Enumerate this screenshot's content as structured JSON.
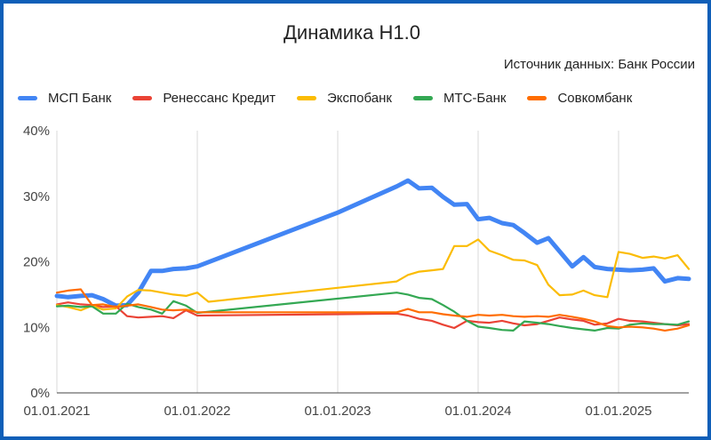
{
  "chart_data": {
    "type": "line",
    "title": "Динамика Н1.0",
    "subtitle": "Источник данных: Банк России",
    "y_ticks": [
      "0%",
      "10%",
      "20%",
      "30%",
      "40%"
    ],
    "ylim": [
      0,
      40
    ],
    "x_ticks": [
      "01.01.2021",
      "01.01.2022",
      "01.01.2023",
      "01.01.2024",
      "01.01.2025"
    ],
    "x_tick_values": [
      2021.0,
      2022.0,
      2023.0,
      2024.0,
      2025.0
    ],
    "xlim": [
      2021.0,
      2025.5
    ],
    "grid": "vertical",
    "legend_position": "top",
    "series": [
      {
        "name": "МСП Банк",
        "color": "#4285f4",
        "x": [
          2021.0,
          2021.08,
          2021.17,
          2021.25,
          2021.33,
          2021.42,
          2021.5,
          2021.58,
          2021.67,
          2021.75,
          2021.83,
          2021.92,
          2022.0,
          2023.0,
          2023.42,
          2023.5,
          2023.58,
          2023.67,
          2023.75,
          2023.83,
          2023.92,
          2024.0,
          2024.08,
          2024.17,
          2024.25,
          2024.33,
          2024.42,
          2024.5,
          2024.58,
          2024.67,
          2024.75,
          2024.83,
          2024.92,
          2025.0,
          2025.08,
          2025.17,
          2025.25,
          2025.33,
          2025.42,
          2025.5
        ],
        "values": [
          14.8,
          14.6,
          14.8,
          14.9,
          14.3,
          13.3,
          13.4,
          15.3,
          18.6,
          18.6,
          18.9,
          19.0,
          19.3,
          27.5,
          31.5,
          32.4,
          31.2,
          31.3,
          29.9,
          28.7,
          28.8,
          26.5,
          26.7,
          25.9,
          25.6,
          24.4,
          22.9,
          23.6,
          21.6,
          19.3,
          20.7,
          19.2,
          18.9,
          18.8,
          18.7,
          18.8,
          19.0,
          17.0,
          17.5,
          17.4
        ]
      },
      {
        "name": "Ренессанс Кредит",
        "color": "#ea4335",
        "x": [
          2021.0,
          2021.08,
          2021.17,
          2021.25,
          2021.33,
          2021.42,
          2021.5,
          2021.58,
          2021.67,
          2021.75,
          2021.83,
          2021.92,
          2022.0,
          2023.0,
          2023.42,
          2023.5,
          2023.58,
          2023.67,
          2023.75,
          2023.83,
          2023.92,
          2024.0,
          2024.08,
          2024.17,
          2024.25,
          2024.33,
          2024.42,
          2024.5,
          2024.58,
          2024.67,
          2024.75,
          2024.83,
          2024.92,
          2025.0,
          2025.08,
          2025.17,
          2025.25,
          2025.33,
          2025.42,
          2025.5
        ],
        "values": [
          13.5,
          13.8,
          13.5,
          13.4,
          13.1,
          13.2,
          11.7,
          11.5,
          11.6,
          11.7,
          11.4,
          12.6,
          11.8,
          12.0,
          12.1,
          11.8,
          11.3,
          11.0,
          10.4,
          9.9,
          11.0,
          10.8,
          10.7,
          11.0,
          10.6,
          10.3,
          10.5,
          11.0,
          11.5,
          11.2,
          11.0,
          10.4,
          10.6,
          11.3,
          11.0,
          10.9,
          10.7,
          10.5,
          10.3,
          10.5
        ]
      },
      {
        "name": "Экспобанк",
        "color": "#fbbc04",
        "x": [
          2021.0,
          2021.08,
          2021.17,
          2021.25,
          2021.33,
          2021.42,
          2021.5,
          2021.58,
          2021.67,
          2021.75,
          2021.83,
          2021.92,
          2022.0,
          2022.08,
          2023.42,
          2023.5,
          2023.58,
          2023.67,
          2023.75,
          2023.83,
          2023.92,
          2024.0,
          2024.08,
          2024.17,
          2024.25,
          2024.33,
          2024.42,
          2024.5,
          2024.58,
          2024.67,
          2024.75,
          2024.83,
          2024.92,
          2025.0,
          2025.08,
          2025.17,
          2025.25,
          2025.33,
          2025.42,
          2025.5
        ],
        "values": [
          13.4,
          13.1,
          12.6,
          13.3,
          12.7,
          12.9,
          14.7,
          15.7,
          15.6,
          15.3,
          15.0,
          14.8,
          15.3,
          13.9,
          17.0,
          18.0,
          18.5,
          18.7,
          18.9,
          22.4,
          22.4,
          23.4,
          21.7,
          21.0,
          20.3,
          20.2,
          19.5,
          16.5,
          14.9,
          15.0,
          15.6,
          14.9,
          14.6,
          21.5,
          21.2,
          20.6,
          20.8,
          20.5,
          21.0,
          18.9
        ]
      },
      {
        "name": "МТС-Банк",
        "color": "#34a853",
        "x": [
          2021.0,
          2021.08,
          2021.17,
          2021.25,
          2021.33,
          2021.42,
          2021.5,
          2021.58,
          2021.67,
          2021.75,
          2021.83,
          2021.92,
          2022.0,
          2023.42,
          2023.5,
          2023.58,
          2023.67,
          2023.75,
          2023.83,
          2023.92,
          2024.0,
          2024.08,
          2024.17,
          2024.25,
          2024.33,
          2024.42,
          2024.5,
          2024.58,
          2024.67,
          2024.75,
          2024.83,
          2024.92,
          2025.0,
          2025.08,
          2025.17,
          2025.25,
          2025.33,
          2025.42,
          2025.5
        ],
        "values": [
          13.2,
          13.3,
          13.1,
          13.2,
          12.1,
          12.1,
          13.6,
          13.1,
          12.7,
          12.1,
          14.0,
          13.3,
          12.2,
          15.3,
          15.0,
          14.5,
          14.3,
          13.4,
          12.4,
          11.0,
          10.1,
          9.9,
          9.6,
          9.5,
          10.9,
          10.7,
          10.5,
          10.2,
          9.9,
          9.7,
          9.5,
          9.9,
          9.8,
          10.4,
          10.6,
          10.5,
          10.5,
          10.4,
          10.9
        ]
      },
      {
        "name": "Совкомбанк",
        "color": "#ff6d01",
        "x": [
          2021.0,
          2021.08,
          2021.17,
          2021.25,
          2021.33,
          2021.42,
          2021.5,
          2021.58,
          2021.67,
          2021.75,
          2021.83,
          2021.92,
          2022.0,
          2023.42,
          2023.5,
          2023.58,
          2023.67,
          2023.75,
          2023.83,
          2023.92,
          2024.0,
          2024.08,
          2024.17,
          2024.25,
          2024.33,
          2024.42,
          2024.5,
          2024.58,
          2024.67,
          2024.75,
          2024.83,
          2024.92,
          2025.0,
          2025.08,
          2025.17,
          2025.25,
          2025.33,
          2025.42,
          2025.5
        ],
        "values": [
          15.3,
          15.6,
          15.8,
          13.4,
          13.5,
          13.1,
          13.3,
          13.5,
          13.1,
          12.7,
          12.6,
          12.7,
          12.3,
          12.3,
          12.8,
          12.3,
          12.3,
          12.0,
          11.8,
          11.6,
          11.9,
          11.8,
          11.9,
          11.7,
          11.6,
          11.7,
          11.6,
          11.9,
          11.6,
          11.3,
          10.9,
          10.2,
          10.0,
          10.1,
          10.0,
          9.8,
          9.5,
          9.8,
          10.3
        ]
      }
    ]
  }
}
